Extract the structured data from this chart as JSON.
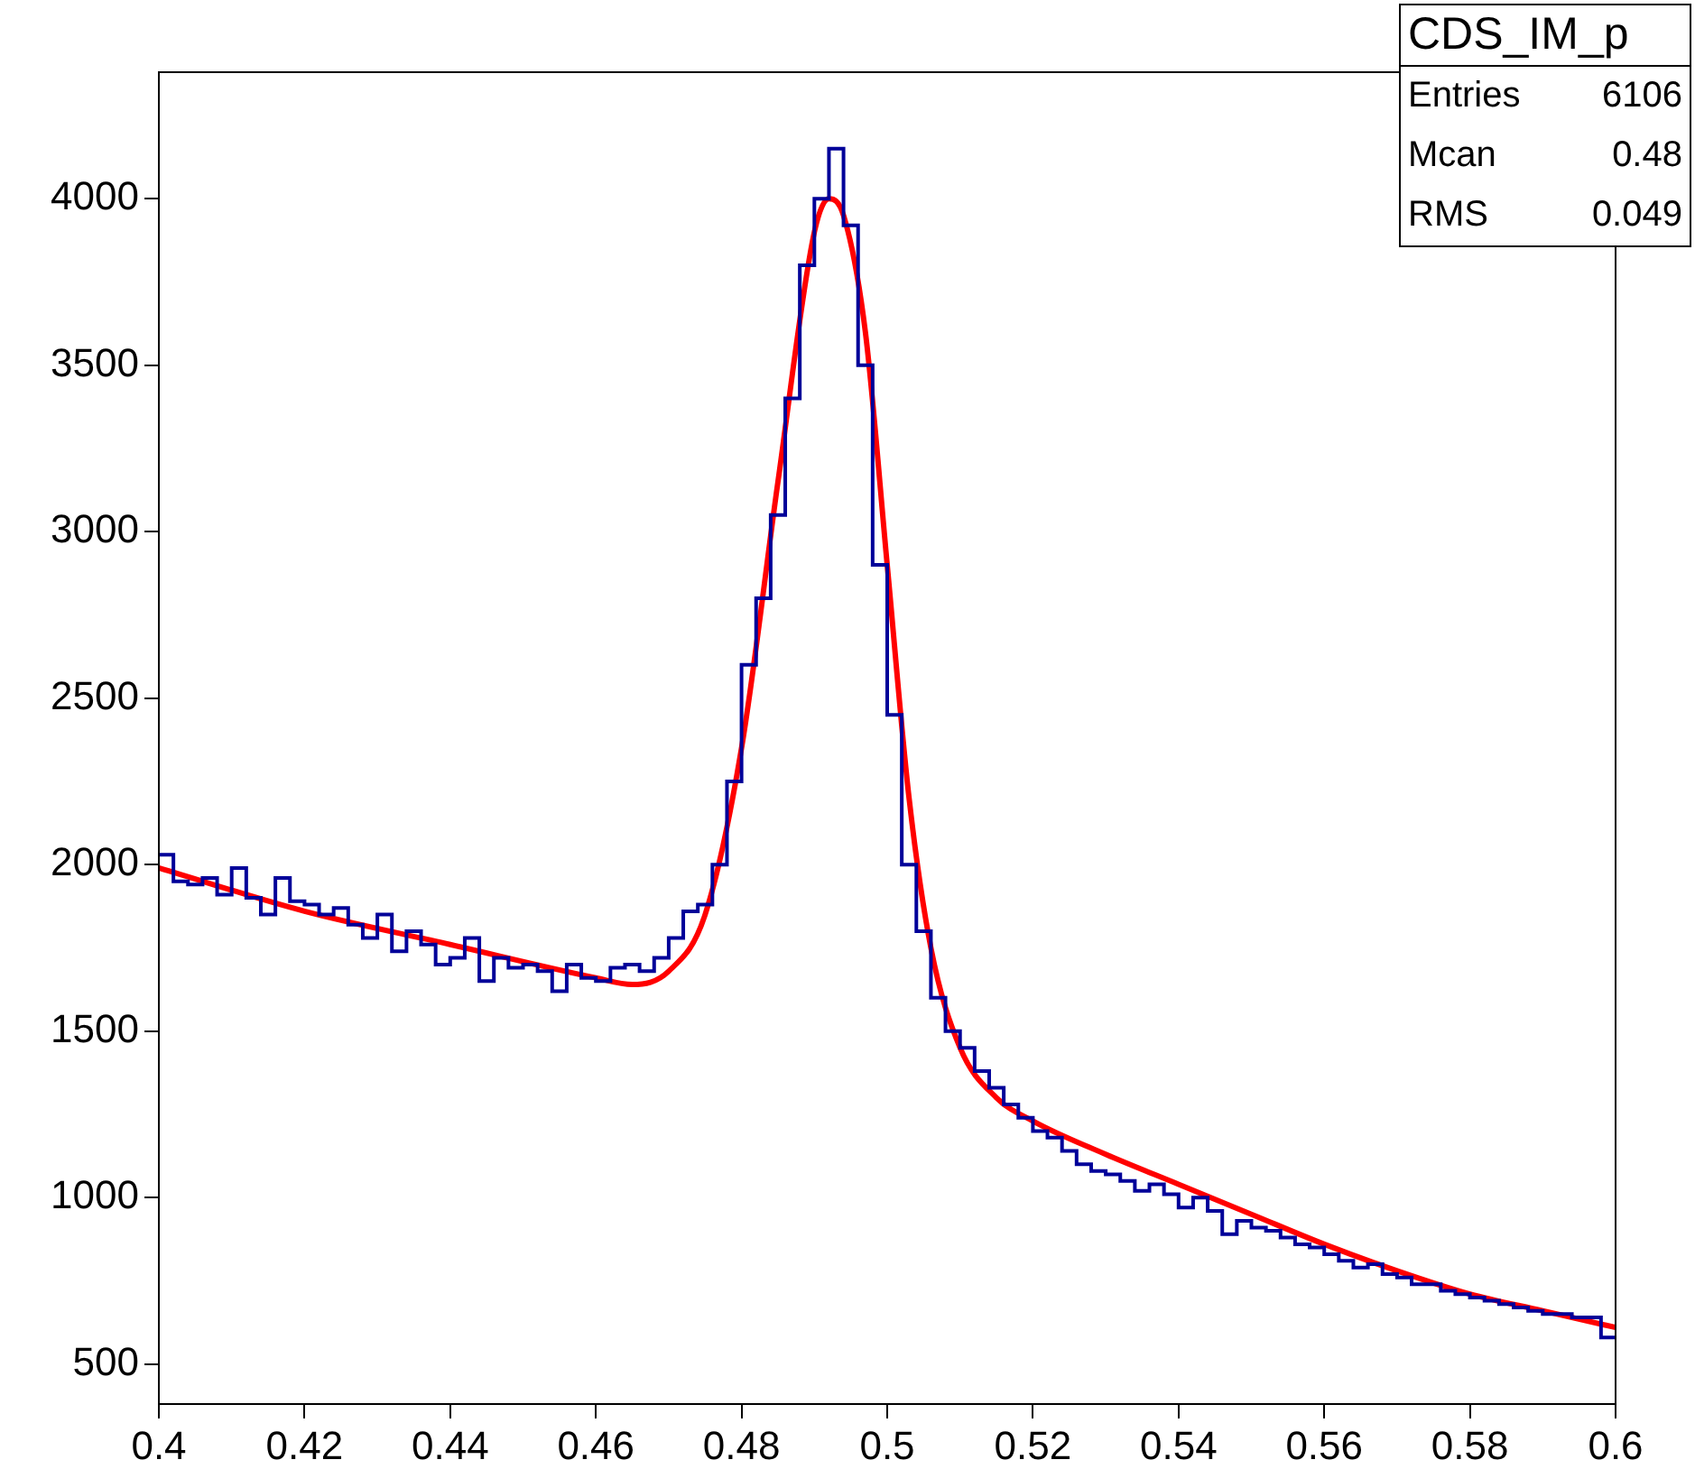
{
  "chart_data": {
    "type": "histogram",
    "xlim": [
      0.4,
      0.6
    ],
    "xticks": [
      0.4,
      0.42,
      0.44,
      0.46,
      0.48,
      0.5,
      0.52,
      0.54,
      0.56,
      0.58,
      0.6
    ],
    "ylim": [
      380,
      4380
    ],
    "yticks": [
      500,
      1000,
      1500,
      2000,
      2500,
      3000,
      3500,
      4000
    ],
    "grid": false,
    "legend": false,
    "annotations": [
      "CDS_IM_p",
      "Entries 6106",
      "Mcan 0.48",
      "RMS 0.049"
    ],
    "series": [
      {
        "color": "#000099",
        "bins": [
          0.4,
          0.402,
          0.404,
          0.406,
          0.408,
          0.41,
          0.412,
          0.414,
          0.416,
          0.418,
          0.42,
          0.422,
          0.424,
          0.426,
          0.428,
          0.43,
          0.432,
          0.434,
          0.436,
          0.438,
          0.44,
          0.442,
          0.444,
          0.446,
          0.448,
          0.45,
          0.452,
          0.454,
          0.456,
          0.458,
          0.46,
          0.462,
          0.464,
          0.466,
          0.468,
          0.47,
          0.472,
          0.474,
          0.476,
          0.478,
          0.48,
          0.482,
          0.484,
          0.486,
          0.488,
          0.49,
          0.492,
          0.494,
          0.496,
          0.498,
          0.5,
          0.502,
          0.504,
          0.506,
          0.508,
          0.51,
          0.512,
          0.514,
          0.516,
          0.518,
          0.52,
          0.522,
          0.524,
          0.526,
          0.528,
          0.53,
          0.532,
          0.534,
          0.536,
          0.538,
          0.54,
          0.542,
          0.544,
          0.546,
          0.548,
          0.55,
          0.552,
          0.554,
          0.556,
          0.558,
          0.56,
          0.562,
          0.564,
          0.566,
          0.568,
          0.57,
          0.572,
          0.574,
          0.576,
          0.578,
          0.58,
          0.582,
          0.584,
          0.586,
          0.588,
          0.59,
          0.592,
          0.594,
          0.596,
          0.598,
          0.6
        ],
        "values": [
          2030,
          1950,
          1940,
          1960,
          1910,
          1990,
          1900,
          1850,
          1960,
          1890,
          1880,
          1850,
          1870,
          1820,
          1780,
          1850,
          1740,
          1800,
          1760,
          1700,
          1720,
          1780,
          1650,
          1720,
          1690,
          1700,
          1680,
          1620,
          1700,
          1660,
          1650,
          1690,
          1700,
          1680,
          1720,
          1780,
          1860,
          1880,
          2000,
          2250,
          2600,
          2800,
          3050,
          3400,
          3800,
          4000,
          4150,
          3920,
          3500,
          2900,
          2450,
          2000,
          1800,
          1600,
          1500,
          1450,
          1380,
          1330,
          1280,
          1240,
          1200,
          1180,
          1140,
          1100,
          1080,
          1070,
          1050,
          1020,
          1040,
          1010,
          970,
          1000,
          960,
          890,
          930,
          910,
          900,
          880,
          860,
          850,
          830,
          810,
          790,
          800,
          770,
          760,
          740,
          740,
          720,
          710,
          700,
          690,
          680,
          670,
          660,
          650,
          650,
          640,
          640,
          580
        ]
      },
      {
        "type": "line",
        "color": "#ff0000",
        "x": [
          0.4,
          0.42,
          0.44,
          0.46,
          0.465,
          0.47,
          0.475,
          0.48,
          0.485,
          0.49,
          0.492,
          0.494,
          0.497,
          0.5,
          0.503,
          0.506,
          0.51,
          0.515,
          0.52,
          0.53,
          0.54,
          0.55,
          0.56,
          0.57,
          0.58,
          0.59,
          0.6
        ],
        "values": [
          1990,
          1860,
          1760,
          1660,
          1640,
          1680,
          1850,
          2350,
          3150,
          3900,
          4000,
          3950,
          3600,
          2900,
          2200,
          1750,
          1450,
          1300,
          1230,
          1130,
          1040,
          950,
          860,
          780,
          710,
          660,
          610
        ]
      }
    ]
  }
}
